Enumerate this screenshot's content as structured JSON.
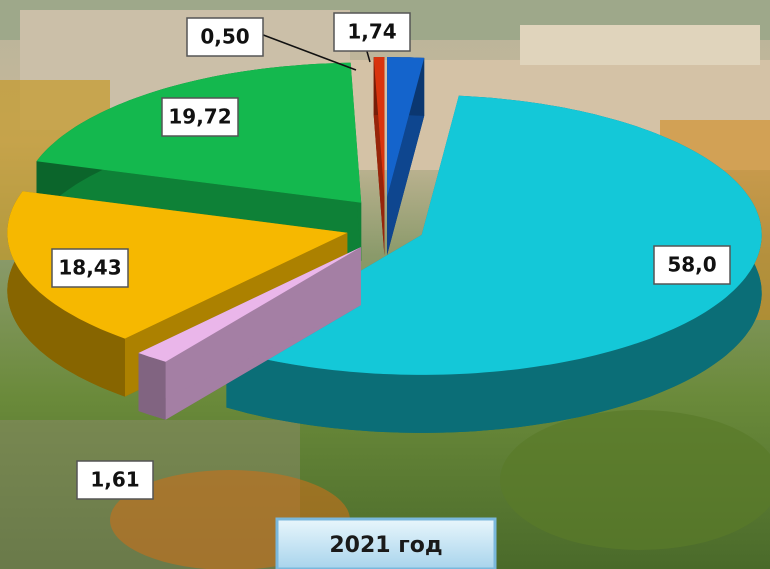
{
  "chart_data": {
    "type": "pie",
    "title": "2021 год",
    "values": [
      58.0,
      1.61,
      18.43,
      19.72,
      0.5,
      1.74
    ],
    "value_labels": [
      "58,0",
      "1,61",
      "18,43",
      "19,72",
      "0,50",
      "1,74"
    ],
    "colors": [
      "#14c8d8",
      "#eab6ea",
      "#f6b800",
      "#14b84e",
      "#d8340e",
      "#1464cc"
    ]
  }
}
